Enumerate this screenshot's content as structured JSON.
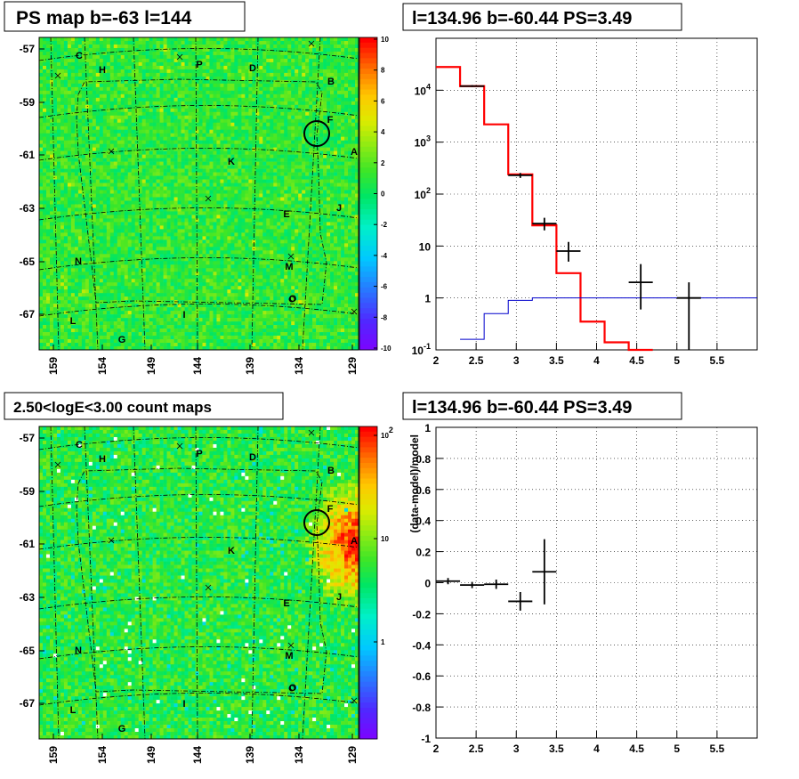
{
  "panels": {
    "tl_title": "PS map b=-63 l=144",
    "tr_title": "l=134.96 b=-60.44 PS=3.49",
    "bl_title": "2.50<logE<3.00 count maps",
    "br_title": "l=134.96 b=-60.44 PS=3.49"
  },
  "chart_data": [
    {
      "type": "heatmap",
      "id": "ps-map",
      "x_ticks": [
        "159",
        "154",
        "149",
        "144",
        "139",
        "134",
        "129"
      ],
      "y_ticks": [
        "-57",
        "-59",
        "-61",
        "-63",
        "-65",
        "-67"
      ],
      "z_ticks": [
        "10",
        "8",
        "6",
        "4",
        "2",
        "0",
        "-2",
        "-4",
        "-6",
        "-8",
        "-10"
      ],
      "zlim": [
        -10,
        10
      ],
      "regions": [
        "C",
        "H",
        "P",
        "D",
        "B",
        "F",
        "A",
        "K",
        "E",
        "J",
        "N",
        "M",
        "O",
        "L",
        "I",
        "G"
      ]
    },
    {
      "type": "line",
      "id": "spectrum",
      "xlim": [
        2,
        6
      ],
      "ylim": [
        0.1,
        100000
      ],
      "yscale": "log",
      "grid": true,
      "x_ticks": [
        "2",
        "2.5",
        "3",
        "3.5",
        "4",
        "4.5",
        "5",
        "5.5"
      ],
      "y_ticks": [
        "10^{-1}",
        "1",
        "10",
        "10^{2}",
        "10^{3}",
        "10^{4}"
      ],
      "series": [
        {
          "color": "#ff0000",
          "step": true,
          "edges": [
            2.0,
            2.3,
            2.6,
            2.9,
            3.2,
            3.5,
            3.8,
            4.1,
            4.4,
            4.7
          ],
          "values": [
            28000,
            12000,
            2200,
            240,
            25,
            3,
            0.35,
            0.14,
            0.1
          ]
        },
        {
          "color": "#0000cc",
          "step": true,
          "edges": [
            2.3,
            2.6,
            2.9,
            3.2,
            3.5,
            6.0
          ],
          "values": [
            0.16,
            0.5,
            0.9,
            1.0,
            1.0
          ]
        },
        {
          "color": "#000000",
          "errorbars": true,
          "points": [
            {
              "x": 2.45,
              "y": 12000,
              "xerr": 0.15,
              "ylo": 11500,
              "yhi": 12500
            },
            {
              "x": 3.05,
              "y": 230,
              "xerr": 0.15,
              "ylo": 205,
              "yhi": 255
            },
            {
              "x": 3.35,
              "y": 27,
              "xerr": 0.15,
              "ylo": 20,
              "yhi": 35
            },
            {
              "x": 3.65,
              "y": 8,
              "xerr": 0.15,
              "ylo": 5,
              "yhi": 12
            },
            {
              "x": 4.55,
              "y": 2,
              "xerr": 0.15,
              "ylo": 0.6,
              "yhi": 4.5
            },
            {
              "x": 5.15,
              "y": 1,
              "xerr": 0.15,
              "ylo": 0.1,
              "yhi": 2
            }
          ]
        }
      ]
    },
    {
      "type": "heatmap",
      "id": "count-map",
      "x_ticks": [
        "159",
        "154",
        "149",
        "144",
        "139",
        "134",
        "129"
      ],
      "y_ticks": [
        "-57",
        "-59",
        "-61",
        "-63",
        "-65",
        "-67"
      ],
      "z_ticks": [
        "10^{2}",
        "10",
        "1"
      ],
      "zscale": "log",
      "regions": [
        "C",
        "H",
        "P",
        "D",
        "B",
        "F",
        "A",
        "K",
        "E",
        "J",
        "N",
        "M",
        "O",
        "L",
        "I",
        "G"
      ]
    },
    {
      "type": "scatter",
      "id": "residuals",
      "xlim": [
        2,
        6
      ],
      "ylim": [
        -1,
        1
      ],
      "grid": true,
      "ylabel": "(data-model)/model",
      "x_ticks": [
        "2",
        "2.5",
        "3",
        "3.5",
        "4",
        "4.5",
        "5",
        "5.5"
      ],
      "y_ticks": [
        "1",
        "0.8",
        "0.6",
        "0.4",
        "0.2",
        "0",
        "-0.2",
        "-0.4",
        "-0.6",
        "-0.8",
        "-1"
      ],
      "points": [
        {
          "x": 2.15,
          "y": 0.01,
          "xerr": 0.15,
          "yerr": 0.02
        },
        {
          "x": 2.45,
          "y": -0.015,
          "xerr": 0.15,
          "yerr": 0.02
        },
        {
          "x": 2.75,
          "y": -0.01,
          "xerr": 0.15,
          "yerr": 0.03
        },
        {
          "x": 3.05,
          "y": -0.12,
          "xerr": 0.15,
          "yerr": 0.06
        },
        {
          "x": 3.35,
          "y": 0.07,
          "xerr": 0.15,
          "yerr": 0.21
        }
      ]
    }
  ]
}
